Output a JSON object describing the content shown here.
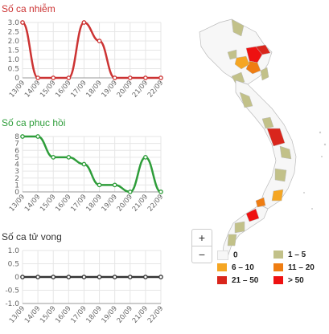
{
  "charts": [
    {
      "title": "Số ca nhiễm",
      "title_color": "#cc3333",
      "line_color": "#cc3333",
      "y_ticks": [
        "3.0",
        "2.5",
        "2.0",
        "1.5",
        "1.0",
        "0.5",
        "0"
      ],
      "y_min": 0,
      "y_max": 3,
      "dates": [
        "13/09",
        "14/09",
        "15/09",
        "16/09",
        "17/09",
        "18/09",
        "19/09",
        "20/09",
        "21/09",
        "22/09"
      ],
      "values": [
        3,
        0,
        0,
        0,
        3,
        2,
        0,
        0,
        0,
        0
      ]
    },
    {
      "title": "Số ca phục hồi",
      "title_color": "#2e9d3a",
      "line_color": "#2e9d3a",
      "y_ticks": [
        "8",
        "7",
        "6",
        "5",
        "4",
        "3",
        "2",
        "1",
        "0"
      ],
      "y_min": 0,
      "y_max": 8,
      "dates": [
        "13/09",
        "14/09",
        "15/09",
        "16/09",
        "17/09",
        "18/09",
        "19/09",
        "20/09",
        "21/09",
        "22/09"
      ],
      "values": [
        8,
        8,
        5,
        5,
        4,
        1,
        1,
        0,
        5,
        0
      ]
    },
    {
      "title": "Số ca tử vong",
      "title_color": "#333333",
      "line_color": "#333333",
      "y_ticks": [
        "1.0",
        "0.5",
        "0",
        "-0.5",
        "-1.0"
      ],
      "y_min": -1,
      "y_max": 1,
      "dates": [
        "13/09",
        "14/09",
        "15/09",
        "16/09",
        "17/09",
        "18/09",
        "19/09",
        "20/09",
        "21/09",
        "22/09"
      ],
      "values": [
        0,
        0,
        0,
        0,
        0,
        0,
        0,
        0,
        0,
        0
      ]
    }
  ],
  "map": {
    "zoom_in": "+",
    "zoom_out": "−",
    "legend": [
      {
        "label": "0",
        "color": "#f7f7f7"
      },
      {
        "label": "1 – 5",
        "color": "#c2c189"
      },
      {
        "label": "6 – 10",
        "color": "#f5a623"
      },
      {
        "label": "11 – 20",
        "color": "#ef7d12"
      },
      {
        "label": "21 – 50",
        "color": "#d9261c"
      },
      {
        "label": "> 50",
        "color": "#ee1111"
      }
    ]
  }
}
